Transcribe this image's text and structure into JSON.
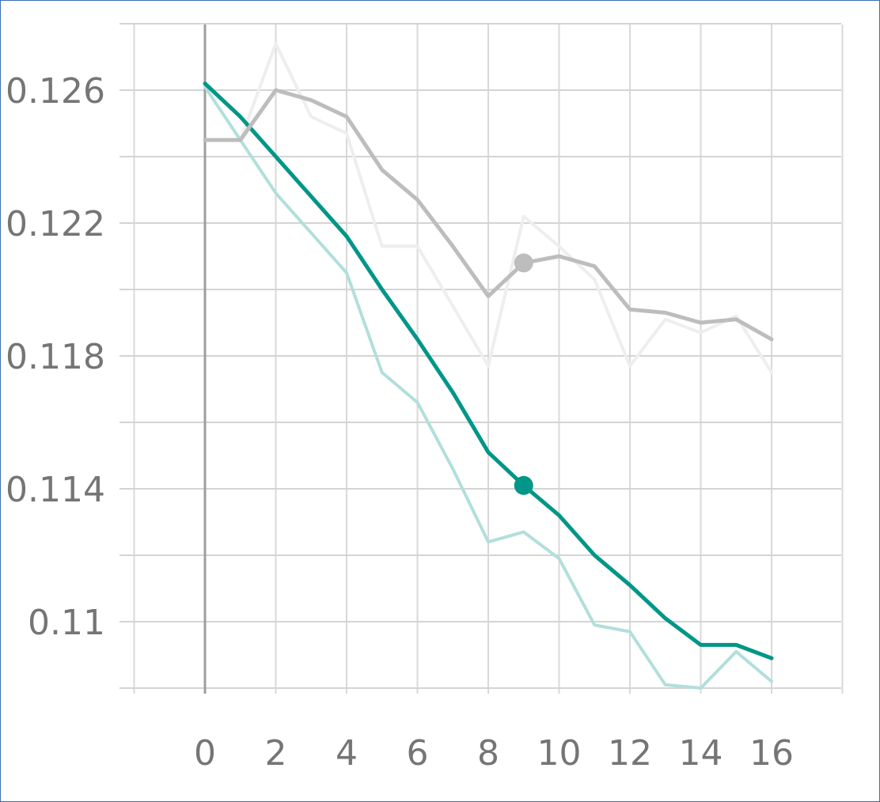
{
  "chart_data": {
    "type": "line",
    "title": "",
    "xlabel": "",
    "ylabel": "",
    "xlim": [
      -2,
      18
    ],
    "ylim": [
      0.108,
      0.1278
    ],
    "x_ticks": [
      0,
      2,
      4,
      6,
      8,
      10,
      12,
      14,
      16
    ],
    "x_tick_labels": [
      "0",
      "2",
      "4",
      "6",
      "8",
      "10",
      "12",
      "14",
      "16"
    ],
    "y_ticks": [
      0.11,
      0.114,
      0.118,
      0.122,
      0.126
    ],
    "y_tick_labels": [
      "0.11",
      "0.114",
      "0.118",
      "0.122",
      "0.126"
    ],
    "grid": true,
    "legend": "none",
    "hover_x": 9,
    "series": [
      {
        "role": "smoothed",
        "color": "#009688",
        "x": [
          0,
          1,
          2,
          3,
          4,
          5,
          6,
          7,
          8,
          9,
          10,
          11,
          12,
          13,
          14,
          15,
          16
        ],
        "values": [
          0.1262,
          0.1252,
          0.124,
          0.1228,
          0.1216,
          0.12,
          0.1185,
          0.1169,
          0.1151,
          0.1141,
          0.1132,
          0.112,
          0.1111,
          0.1101,
          0.1093,
          0.1093,
          0.1089
        ],
        "marker_x": 9,
        "marker_value": 0.1141
      },
      {
        "role": "raw",
        "color": "#b2dfdb",
        "x": [
          0,
          1,
          2,
          3,
          4,
          5,
          6,
          7,
          8,
          9,
          10,
          11,
          12,
          13,
          14,
          15,
          16
        ],
        "values": [
          0.1261,
          0.1245,
          0.1229,
          0.1217,
          0.1205,
          0.1175,
          0.1166,
          0.1146,
          0.1124,
          0.1127,
          0.1119,
          0.1099,
          0.1097,
          0.1081,
          0.108,
          0.1091,
          0.1082
        ]
      },
      {
        "role": "smoothed",
        "color": "#bdbdbd",
        "x": [
          0,
          1,
          2,
          3,
          4,
          5,
          6,
          7,
          8,
          9,
          10,
          11,
          12,
          13,
          14,
          15,
          16
        ],
        "values": [
          0.1245,
          0.1245,
          0.126,
          0.1257,
          0.1252,
          0.1236,
          0.1227,
          0.1213,
          0.1198,
          0.1208,
          0.121,
          0.1207,
          0.1194,
          0.1193,
          0.119,
          0.1191,
          0.1185
        ],
        "marker_x": 9,
        "marker_value": 0.1208
      },
      {
        "role": "raw",
        "color": "#eeeeee",
        "x": [
          0,
          1,
          2,
          3,
          4,
          5,
          6,
          7,
          8,
          9,
          10,
          11,
          12,
          13,
          14,
          15,
          16
        ],
        "values": [
          0.1245,
          0.1245,
          0.1274,
          0.1252,
          0.1247,
          0.1213,
          0.1213,
          0.1195,
          0.1177,
          0.1222,
          0.1213,
          0.1203,
          0.1177,
          0.1191,
          0.1187,
          0.1192,
          0.1175
        ]
      }
    ]
  }
}
